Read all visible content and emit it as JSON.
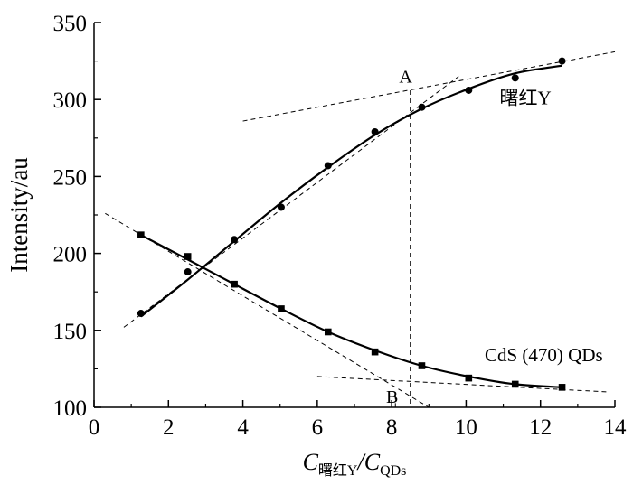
{
  "chart_data": {
    "type": "scatter",
    "title": "",
    "xlabel": {
      "main": "C",
      "sub1": "曙红Y",
      "slash": "/C",
      "sub2": "QDs"
    },
    "ylabel": "Intensity/au",
    "xlim": [
      0,
      14
    ],
    "ylim": [
      100,
      350
    ],
    "x_ticks": [
      "0",
      "2",
      "4",
      "6",
      "8",
      "10",
      "12",
      "14"
    ],
    "y_ticks": [
      "100",
      "150",
      "200",
      "250",
      "300",
      "350"
    ],
    "grid": false,
    "series": [
      {
        "name": "曙红Y",
        "marker": "circle",
        "points": [
          [
            1.26,
            161
          ],
          [
            2.52,
            188
          ],
          [
            3.77,
            209
          ],
          [
            5.03,
            230
          ],
          [
            6.29,
            257
          ],
          [
            7.55,
            279
          ],
          [
            8.81,
            295
          ],
          [
            10.07,
            306
          ],
          [
            11.32,
            314
          ],
          [
            12.58,
            325
          ]
        ],
        "fit": [
          [
            1.26,
            159
          ],
          [
            2.52,
            183
          ],
          [
            3.77,
            208
          ],
          [
            5.03,
            233
          ],
          [
            6.29,
            256
          ],
          [
            7.55,
            277
          ],
          [
            8.81,
            294
          ],
          [
            10.07,
            307
          ],
          [
            11.32,
            317
          ],
          [
            12.58,
            322
          ]
        ]
      },
      {
        "name": "CdS (470) QDs",
        "marker": "square",
        "points": [
          [
            1.26,
            212
          ],
          [
            2.52,
            198
          ],
          [
            3.77,
            180
          ],
          [
            5.03,
            164
          ],
          [
            6.29,
            149
          ],
          [
            7.55,
            136
          ],
          [
            8.81,
            127
          ],
          [
            10.07,
            119
          ],
          [
            11.32,
            115
          ],
          [
            12.58,
            113
          ]
        ],
        "fit": [
          [
            1.26,
            212
          ],
          [
            2.52,
            196
          ],
          [
            3.77,
            180
          ],
          [
            5.03,
            164
          ],
          [
            6.29,
            149
          ],
          [
            7.55,
            137
          ],
          [
            8.81,
            127
          ],
          [
            10.07,
            120
          ],
          [
            11.32,
            115
          ],
          [
            12.58,
            113
          ]
        ]
      }
    ],
    "tangent_lines": [
      [
        [
          0.8,
          152
        ],
        [
          9.8,
          315
        ]
      ],
      [
        [
          4.0,
          286
        ],
        [
          14.0,
          331
        ]
      ],
      [
        [
          0.3,
          226
        ],
        [
          9.0,
          100
        ]
      ],
      [
        [
          6.0,
          120
        ],
        [
          13.8,
          110
        ]
      ]
    ],
    "vertical_markers": [
      {
        "x": 8.5,
        "y_top": 306,
        "y_bottom": 100
      },
      {
        "x": 8.1,
        "y_top": 108,
        "y_bottom": 100
      }
    ],
    "annotations": [
      {
        "text": "A",
        "x": 8.2,
        "y": 311
      },
      {
        "text": "B",
        "x": 7.85,
        "y": 103
      },
      {
        "text": "曙红Y",
        "x": 10.9,
        "y": 297
      },
      {
        "text": "CdS (470) QDs",
        "x": 10.5,
        "y": 130
      }
    ]
  }
}
